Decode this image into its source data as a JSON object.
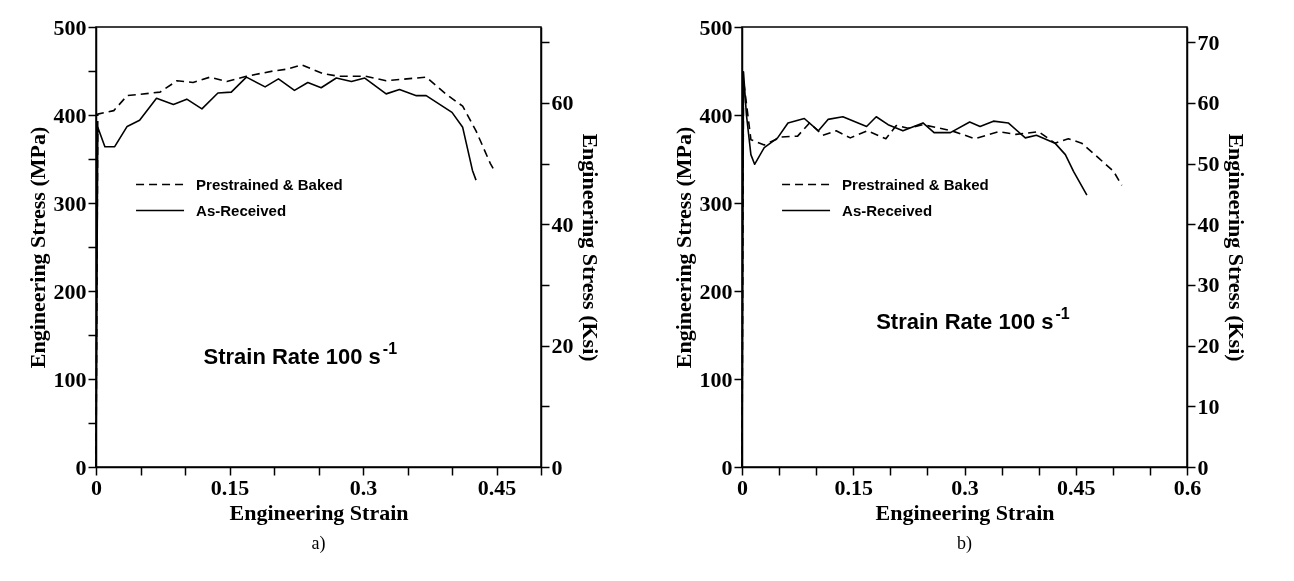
{
  "chart_data": [
    {
      "type": "line",
      "title": "a)",
      "xlabel": "Engineering Strain",
      "ylabel": "Engineering Stress (MPa)",
      "y2label": "Engineering Stress (Ksi)",
      "xlim": [
        0,
        0.5
      ],
      "ylim": [
        0,
        500
      ],
      "y2lim": [
        0,
        72.52
      ],
      "xticks": [
        0,
        {
          "value": 0.05,
          "label": null
        },
        {
          "value": 0.1,
          "label": null
        },
        0.15,
        {
          "value": 0.2,
          "label": null
        },
        {
          "value": 0.25,
          "label": null
        },
        0.3,
        {
          "value": 0.35,
          "label": null
        },
        {
          "value": 0.4,
          "label": null
        },
        0.45,
        {
          "value": 0.5,
          "label": null
        }
      ],
      "yticks": [
        0,
        {
          "value": 50,
          "label": null
        },
        100,
        {
          "value": 150,
          "label": null
        },
        200,
        {
          "value": 250,
          "label": null
        },
        300,
        {
          "value": 350,
          "label": null
        },
        400,
        {
          "value": 450,
          "label": null
        },
        500
      ],
      "y2ticks": [
        0,
        {
          "value": 10,
          "label": null
        },
        20,
        {
          "value": 30,
          "label": null
        },
        40,
        {
          "value": 50,
          "label": null
        },
        60,
        {
          "value": 70,
          "label": null
        }
      ],
      "grid": false,
      "legend": "left",
      "annotations": [
        "Strain Rate 100 s$^{-1}$"
      ],
      "series": [
        {
          "name": "Prestrained & Baked",
          "color": "#000000",
          "line_style": "dashed",
          "x": [
            0,
            0.002,
            0.02,
            0.035,
            0.072,
            0.091,
            0.109,
            0.128,
            0.147,
            0.169,
            0.199,
            0.214,
            0.231,
            0.255,
            0.273,
            0.303,
            0.326,
            0.371,
            0.393,
            0.412,
            0.427,
            0.443,
            0.447
          ],
          "values": [
            0,
            401,
            405,
            422,
            426,
            439,
            437,
            443,
            438,
            444,
            450,
            452,
            457,
            447,
            444,
            444,
            439,
            443,
            424,
            410,
            382,
            345,
            338
          ]
        },
        {
          "name": "As-Received",
          "color": "#000000",
          "line_style": "solid",
          "x": [
            0,
            0.002,
            0.01,
            0.021,
            0.035,
            0.049,
            0.068,
            0.087,
            0.102,
            0.119,
            0.137,
            0.152,
            0.169,
            0.19,
            0.205,
            0.223,
            0.238,
            0.253,
            0.27,
            0.287,
            0.302,
            0.326,
            0.341,
            0.36,
            0.371,
            0.4,
            0.412,
            0.423,
            0.427
          ],
          "values": [
            0,
            386,
            364,
            364,
            387,
            394,
            419,
            412,
            418,
            407,
            425,
            426,
            443,
            432,
            441,
            428,
            437,
            431,
            442,
            438,
            442,
            424,
            429,
            422,
            422,
            403,
            386,
            337,
            326
          ]
        }
      ]
    },
    {
      "type": "line",
      "title": "b)",
      "xlabel": "Engineering Strain",
      "ylabel": "Engineering Stress (MPa)",
      "y2label": "Engineering Stress (Ksi)",
      "xlim": [
        0,
        0.6
      ],
      "ylim": [
        0,
        500
      ],
      "y2lim": [
        0,
        72.52
      ],
      "xticks": [
        0,
        {
          "value": 0.05,
          "label": null
        },
        {
          "value": 0.1,
          "label": null
        },
        0.15,
        {
          "value": 0.2,
          "label": null
        },
        {
          "value": 0.25,
          "label": null
        },
        0.3,
        {
          "value": 0.35,
          "label": null
        },
        {
          "value": 0.4,
          "label": null
        },
        0.45,
        {
          "value": 0.5,
          "label": null
        },
        {
          "value": 0.55,
          "label": null
        },
        0.6
      ],
      "yticks": [
        0,
        100,
        200,
        300,
        400,
        500
      ],
      "y2ticks": [
        0,
        10,
        20,
        30,
        40,
        50,
        60,
        70
      ],
      "grid": false,
      "legend": "left",
      "annotations": [
        "Strain Rate 100 s$^{-1}$"
      ],
      "series": [
        {
          "name": "Prestrained & Baked",
          "color": "#000000",
          "line_style": "dashed",
          "x": [
            0,
            0.002,
            0.012,
            0.03,
            0.053,
            0.075,
            0.091,
            0.109,
            0.127,
            0.146,
            0.169,
            0.194,
            0.208,
            0.224,
            0.244,
            0.283,
            0.314,
            0.346,
            0.369,
            0.4,
            0.422,
            0.44,
            0.458,
            0.481,
            0.501,
            0.512
          ],
          "values": [
            0,
            440,
            372,
            366,
            375,
            376,
            391,
            377,
            382,
            374,
            382,
            373,
            388,
            385,
            389,
            382,
            373,
            381,
            378,
            381,
            368,
            373,
            368,
            351,
            336,
            320
          ]
        },
        {
          "name": "As-Received",
          "color": "#000000",
          "line_style": "solid",
          "x": [
            0,
            0.002,
            0.006,
            0.012,
            0.017,
            0.03,
            0.048,
            0.062,
            0.084,
            0.103,
            0.116,
            0.136,
            0.168,
            0.181,
            0.197,
            0.217,
            0.244,
            0.259,
            0.281,
            0.307,
            0.321,
            0.339,
            0.359,
            0.382,
            0.397,
            0.422,
            0.436,
            0.447,
            0.465
          ],
          "values": [
            0,
            449,
            400,
            355,
            344,
            363,
            374,
            391,
            396,
            382,
            395,
            398,
            387,
            398,
            389,
            382,
            391,
            380,
            380,
            392,
            387,
            393,
            391,
            374,
            377,
            368,
            355,
            336,
            309
          ]
        }
      ]
    }
  ]
}
